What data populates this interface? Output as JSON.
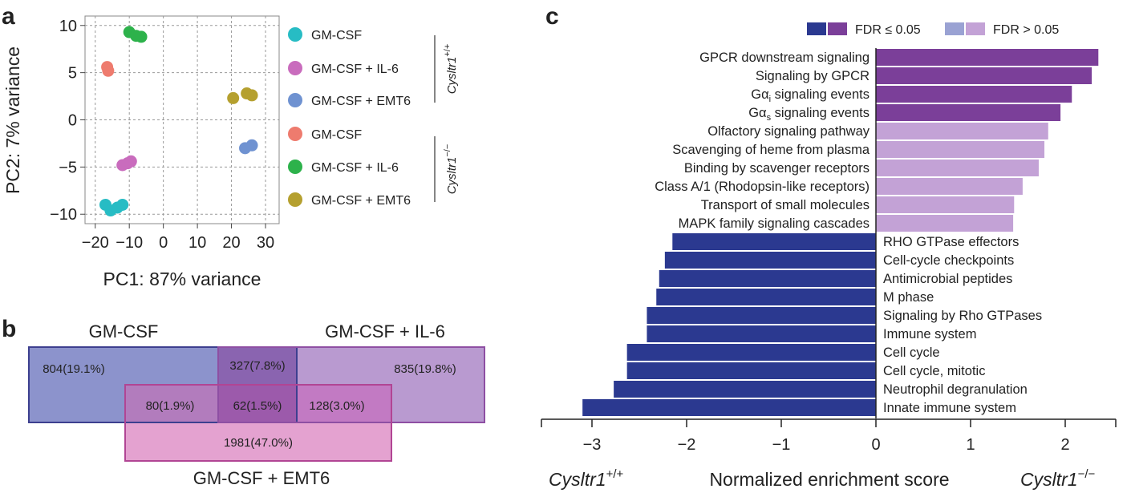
{
  "panel_labels": [
    "a",
    "b",
    "c"
  ],
  "colors": {
    "gm_csf_wt": "#27bcc4",
    "gm_il6_wt": "#c96cbd",
    "gm_emt6_wt": "#6f92d1",
    "gm_csf_ko": "#ee7b6e",
    "gm_il6_ko": "#2db24b",
    "gm_emt6_ko": "#b5a02f",
    "fdr_sig_neg": "#2b3990",
    "fdr_sig_pos": "#7b3f99",
    "fdr_ns_neg": "#9aa2d3",
    "fdr_ns_pos": "#c3a2d6",
    "venn_gm": "#8c93cc",
    "venn_il6": "#b99ad0",
    "venn_emt6": "#e4a2d0"
  },
  "chart_data": [
    {
      "type": "scatter",
      "panel": "a",
      "xlabel": "PC1: 87% variance",
      "ylabel": "PC2: 7% variance",
      "xlim": [
        -23,
        34
      ],
      "ylim": [
        -11,
        11
      ],
      "xticks": [
        -20,
        -10,
        0,
        10,
        20,
        30
      ],
      "xtick_labels": [
        "−20",
        "−10",
        "0",
        "10",
        "20",
        "30"
      ],
      "yticks": [
        -10,
        -5,
        0,
        5,
        10
      ],
      "ytick_labels": [
        "−10",
        "−5",
        "0",
        "5",
        "10"
      ],
      "grid": true,
      "series": [
        {
          "name": "GM-CSF",
          "genotype": "wt",
          "color": "#27bcc4",
          "points": [
            [
              -17,
              -9
            ],
            [
              -15.5,
              -9.6
            ],
            [
              -13.5,
              -9.3
            ],
            [
              -12,
              -9
            ]
          ]
        },
        {
          "name": "GM-CSF + IL-6",
          "genotype": "wt",
          "color": "#c96cbd",
          "points": [
            [
              -12,
              -4.8
            ],
            [
              -10.5,
              -4.6
            ],
            [
              -9.5,
              -4.4
            ]
          ]
        },
        {
          "name": "GM-CSF + EMT6",
          "genotype": "wt",
          "color": "#6f92d1",
          "points": [
            [
              24,
              -3
            ],
            [
              26,
              -2.7
            ]
          ]
        },
        {
          "name": "GM-CSF",
          "genotype": "ko",
          "color": "#ee7b6e",
          "points": [
            [
              -16.5,
              5.6
            ],
            [
              -16.2,
              5.2
            ]
          ]
        },
        {
          "name": "GM-CSF + IL-6",
          "genotype": "ko",
          "color": "#2db24b",
          "points": [
            [
              -10,
              9.3
            ],
            [
              -8,
              8.9
            ],
            [
              -6.5,
              8.8
            ]
          ]
        },
        {
          "name": "GM-CSF + EMT6",
          "genotype": "ko",
          "color": "#b5a02f",
          "points": [
            [
              20.5,
              2.3
            ],
            [
              24.5,
              2.8
            ],
            [
              26,
              2.6
            ]
          ]
        }
      ],
      "legend_groups": [
        {
          "genotype_label": {
            "gene": "Cysltr1",
            "sup": "+/+"
          },
          "entries": [
            "GM-CSF",
            "GM-CSF + IL-6",
            "GM-CSF + EMT6"
          ]
        },
        {
          "genotype_label": {
            "gene": "Cysltr1",
            "sup": "−/−"
          },
          "entries": [
            "GM-CSF",
            "GM-CSF + IL-6",
            "GM-CSF + EMT6"
          ]
        }
      ]
    },
    {
      "type": "venn",
      "panel": "b",
      "sets": [
        "GM-CSF",
        "GM-CSF + IL-6",
        "GM-CSF + EMT6"
      ],
      "regions": {
        "gm_only": "804(19.1%)",
        "gm_il6": "327(7.8%)",
        "il6_only": "835(19.8%)",
        "gm_emt6": "80(1.9%)",
        "all_three": "62(1.5%)",
        "il6_emt6": "128(3.0%)",
        "emt6_only": "1981(47.0%)"
      },
      "region_values": {
        "gm_only": 804,
        "gm_il6": 327,
        "il6_only": 835,
        "gm_emt6": 80,
        "all_three": 62,
        "il6_emt6": 128,
        "emt6_only": 1981
      }
    },
    {
      "type": "bar",
      "panel": "c",
      "orientation": "horizontal",
      "xlabel": "Normalized enrichment score",
      "xlim": [
        -3.5,
        2.5
      ],
      "xticks": [
        -3,
        -2,
        -1,
        0,
        1,
        2
      ],
      "xtick_labels": [
        "−3",
        "−2",
        "−1",
        "0",
        "1",
        "2"
      ],
      "left_annotation": {
        "gene": "Cysltr1",
        "sup": "+/+"
      },
      "right_annotation": {
        "gene": "Cysltr1",
        "sup": "−/−"
      },
      "legend": [
        {
          "label": "FDR ≤ 0.05",
          "colors": [
            "#2b3990",
            "#7b3f99"
          ]
        },
        {
          "label": "FDR > 0.05",
          "colors": [
            "#9aa2d3",
            "#c3a2d6"
          ]
        }
      ],
      "legend_position": "top-right",
      "bars": [
        {
          "label": "GPCR downstream signaling",
          "value": 2.35,
          "fdr": "sig"
        },
        {
          "label": "Signaling by GPCR",
          "value": 2.28,
          "fdr": "sig"
        },
        {
          "label": "Gα",
          "sub": "i",
          "suffix": " signaling events",
          "value": 2.07,
          "fdr": "sig"
        },
        {
          "label": "Gα",
          "sub": "s",
          "suffix": " signaling events",
          "value": 1.95,
          "fdr": "sig"
        },
        {
          "label": "Olfactory signaling pathway",
          "value": 1.82,
          "fdr": "ns"
        },
        {
          "label": "Scavenging of heme from plasma",
          "value": 1.78,
          "fdr": "ns"
        },
        {
          "label": "Binding by scavenger receptors",
          "value": 1.72,
          "fdr": "ns"
        },
        {
          "label": "Class A/1 (Rhodopsin-like receptors)",
          "value": 1.55,
          "fdr": "ns"
        },
        {
          "label": "Transport of small molecules",
          "value": 1.46,
          "fdr": "ns"
        },
        {
          "label": "MAPK family signaling cascades",
          "value": 1.45,
          "fdr": "ns"
        },
        {
          "label": "RHO GTPase effectors",
          "value": -2.15,
          "fdr": "sig"
        },
        {
          "label": "Cell-cycle checkpoints",
          "value": -2.23,
          "fdr": "sig"
        },
        {
          "label": "Antimicrobial peptides",
          "value": -2.29,
          "fdr": "sig"
        },
        {
          "label": "M phase",
          "value": -2.32,
          "fdr": "sig"
        },
        {
          "label": "Signaling by Rho GTPases",
          "value": -2.42,
          "fdr": "sig"
        },
        {
          "label": "Immune system",
          "value": -2.42,
          "fdr": "sig"
        },
        {
          "label": "Cell cycle",
          "value": -2.63,
          "fdr": "sig"
        },
        {
          "label": "Cell cycle, mitotic",
          "value": -2.63,
          "fdr": "sig"
        },
        {
          "label": "Neutrophil degranulation",
          "value": -2.77,
          "fdr": "sig"
        },
        {
          "label": "Innate immune system",
          "value": -3.1,
          "fdr": "sig"
        }
      ]
    }
  ]
}
